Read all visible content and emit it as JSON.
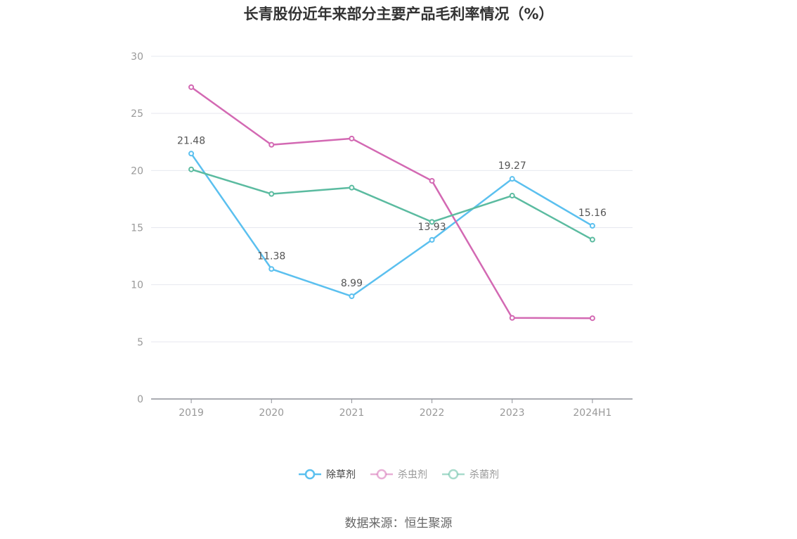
{
  "chart_data": {
    "type": "line",
    "title": "长青股份近年来部分主要产品毛利率情况（%）",
    "categories": [
      "2019",
      "2020",
      "2021",
      "2022",
      "2023",
      "2024H1"
    ],
    "ylim": [
      0,
      30
    ],
    "yticks": [
      0,
      5,
      10,
      15,
      20,
      25,
      30
    ],
    "grid": true,
    "legend_position": "bottom",
    "series": [
      {
        "name": "除草剂",
        "color": "#5bc0ef",
        "values": [
          21.48,
          11.38,
          8.99,
          13.93,
          19.27,
          15.16
        ],
        "labels": [
          "21.48",
          "11.38",
          "8.99",
          "13.93",
          "19.27",
          "15.16"
        ]
      },
      {
        "name": "杀虫剂",
        "color": "#d369b3",
        "values": [
          27.3,
          22.25,
          22.8,
          19.1,
          7.1,
          7.07
        ]
      },
      {
        "name": "杀菌剂",
        "color": "#5bbba0",
        "values": [
          20.1,
          17.95,
          18.5,
          15.5,
          17.8,
          13.95
        ]
      }
    ]
  },
  "source": "数据来源：恒生聚源"
}
